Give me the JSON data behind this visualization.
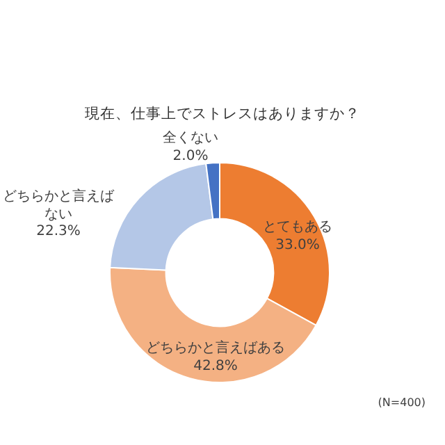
{
  "chart_data": {
    "type": "donut",
    "title": "現在、仕事上でストレスはありますか？",
    "categories": [
      "とてもある",
      "どちらかと言えばある",
      "どちらかと言えばない",
      "全くない"
    ],
    "values": [
      33.0,
      42.8,
      22.3,
      2.0
    ],
    "value_labels": [
      "33.0%",
      "42.8%",
      "22.3%",
      "2.0%"
    ],
    "colors": [
      "#ed7d31",
      "#f4b183",
      "#b4c7e7",
      "#4472c4"
    ],
    "annotations": [
      "(N=400)"
    ],
    "legend": false
  }
}
